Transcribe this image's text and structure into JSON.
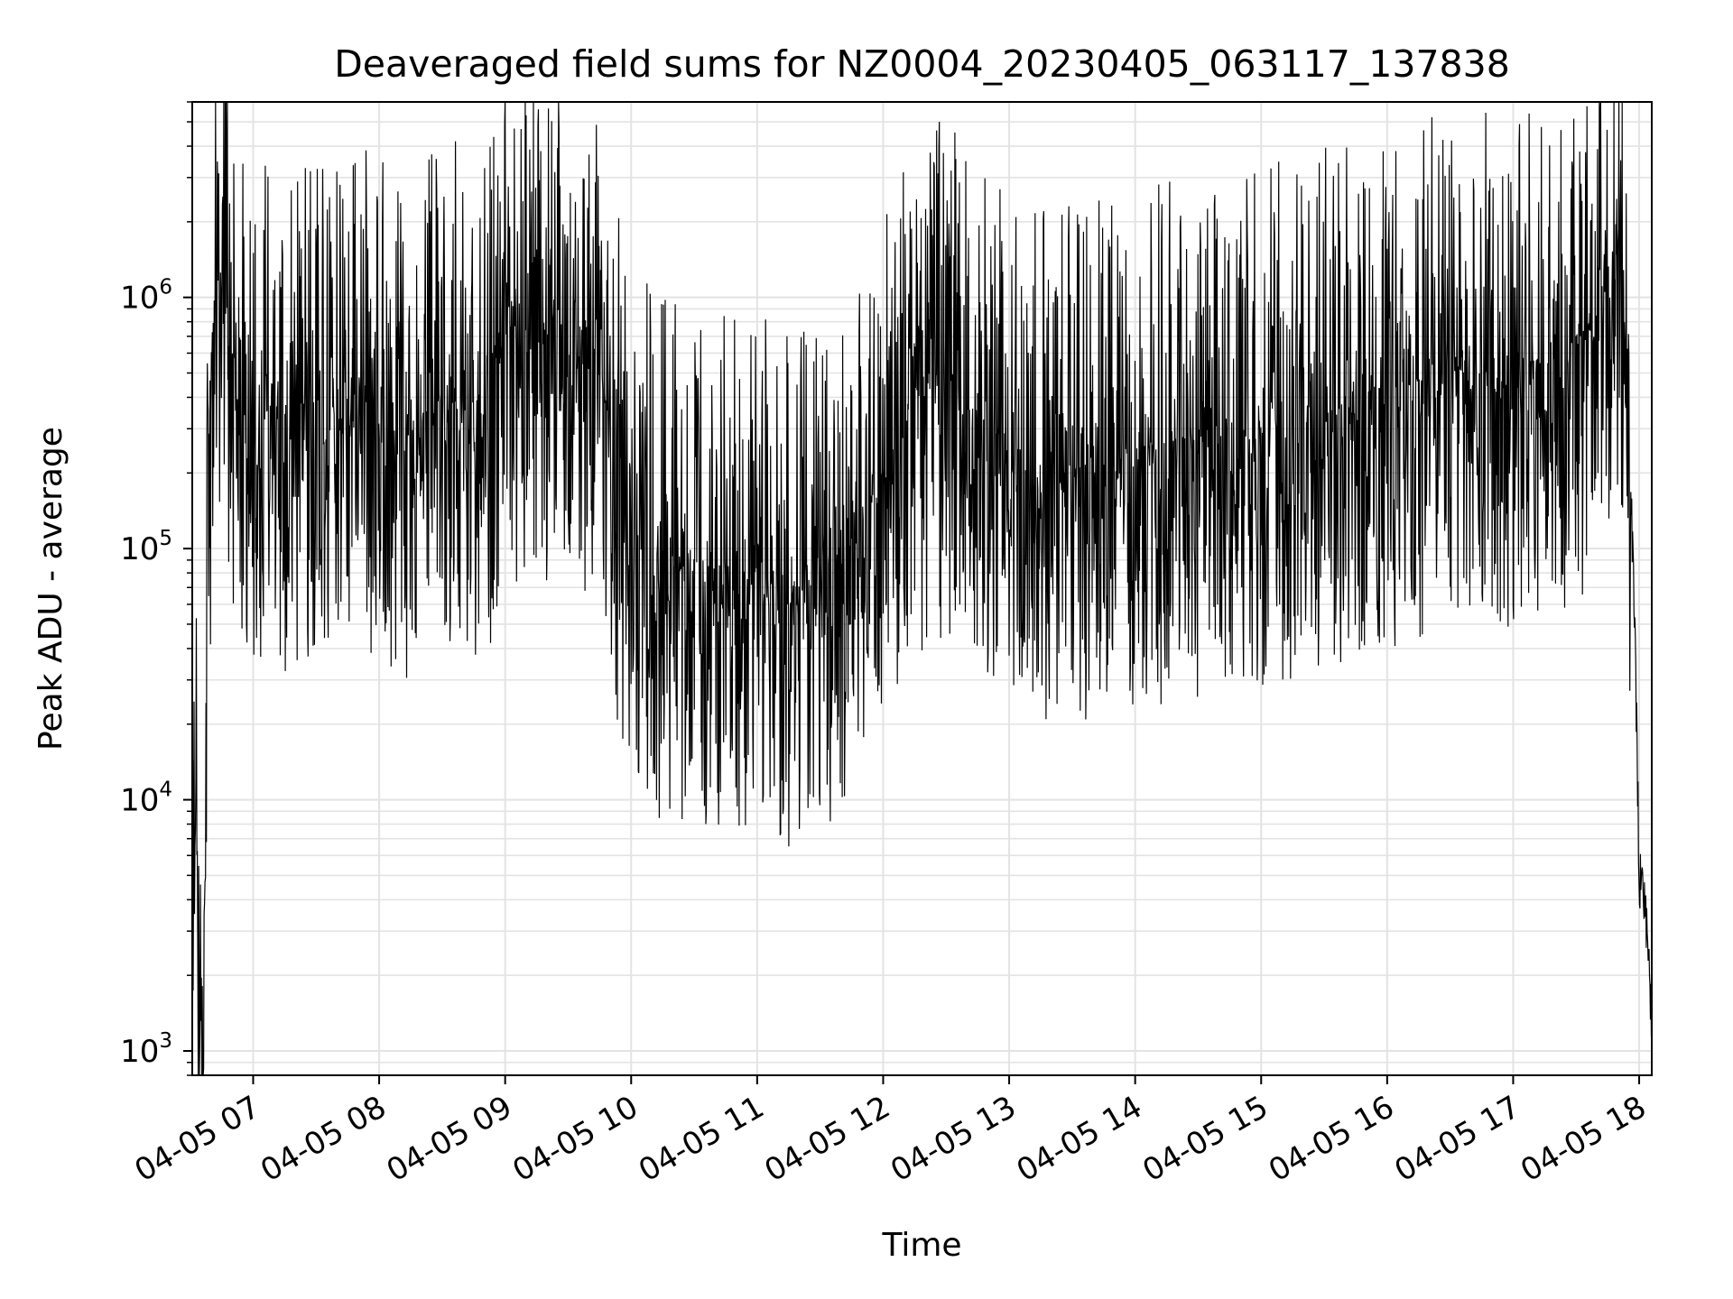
{
  "chart_data": {
    "type": "line",
    "title": "Deaveraged field sums for NZ0004_20230405_063117_137838",
    "xlabel": "Time",
    "ylabel": "Peak ADU - average",
    "y_scale": "log",
    "ylim": [
      800,
      6000000
    ],
    "xlim": [
      "2023-04-05 06:31",
      "2023-04-05 18:06"
    ],
    "grid": true,
    "line_color": "#000000",
    "grid_color": "#e3e3e3",
    "x_ticks": [
      {
        "t": "2023-04-05 07:00",
        "label": "04-05 07"
      },
      {
        "t": "2023-04-05 08:00",
        "label": "04-05 08"
      },
      {
        "t": "2023-04-05 09:00",
        "label": "04-05 09"
      },
      {
        "t": "2023-04-05 10:00",
        "label": "04-05 10"
      },
      {
        "t": "2023-04-05 11:00",
        "label": "04-05 11"
      },
      {
        "t": "2023-04-05 12:00",
        "label": "04-05 12"
      },
      {
        "t": "2023-04-05 13:00",
        "label": "04-05 13"
      },
      {
        "t": "2023-04-05 14:00",
        "label": "04-05 14"
      },
      {
        "t": "2023-04-05 15:00",
        "label": "04-05 15"
      },
      {
        "t": "2023-04-05 16:00",
        "label": "04-05 16"
      },
      {
        "t": "2023-04-05 17:00",
        "label": "04-05 17"
      },
      {
        "t": "2023-04-05 18:00",
        "label": "04-05 18"
      }
    ],
    "y_ticks": [
      {
        "value": 1000,
        "base": "10",
        "exp": "3"
      },
      {
        "value": 10000,
        "base": "10",
        "exp": "4"
      },
      {
        "value": 100000,
        "base": "10",
        "exp": "5"
      },
      {
        "value": 1000000,
        "base": "10",
        "exp": "6"
      }
    ],
    "series": [
      {
        "points": [
          [
            "2023-04-05 06:31",
            7000
          ],
          [
            "2023-04-05 06:33",
            6000
          ],
          [
            "2023-04-05 06:35",
            2800
          ],
          [
            "2023-04-05 06:36",
            1500
          ],
          [
            "2023-04-05 06:37",
            6000
          ],
          [
            "2023-04-05 06:38",
            100000
          ],
          [
            "2023-04-05 06:40",
            600000
          ],
          [
            "2023-04-05 06:42",
            1200000
          ],
          [
            "2023-04-05 06:44",
            1400000
          ],
          [
            "2023-04-05 06:47",
            1000000
          ],
          [
            "2023-04-05 06:50",
            600000
          ],
          [
            "2023-04-05 06:55",
            500000
          ],
          [
            "2023-04-05 07:00",
            400000
          ],
          [
            "2023-04-05 07:15",
            350000
          ],
          [
            "2023-04-05 07:30",
            400000
          ],
          [
            "2023-04-05 07:45",
            350000
          ],
          [
            "2023-04-05 08:00",
            400000
          ],
          [
            "2023-04-05 08:15",
            300000
          ],
          [
            "2023-04-05 08:30",
            400000
          ],
          [
            "2023-04-05 08:45",
            350000
          ],
          [
            "2023-04-05 08:55",
            500000
          ],
          [
            "2023-04-05 09:00",
            800000
          ],
          [
            "2023-04-05 09:15",
            700000
          ],
          [
            "2023-04-05 09:30",
            1000000
          ],
          [
            "2023-04-05 09:45",
            600000
          ],
          [
            "2023-04-05 09:50",
            300000
          ],
          [
            "2023-04-05 10:00",
            120000
          ],
          [
            "2023-04-05 10:15",
            90000
          ],
          [
            "2023-04-05 10:30",
            80000
          ],
          [
            "2023-04-05 10:45",
            90000
          ],
          [
            "2023-04-05 11:00",
            80000
          ],
          [
            "2023-04-05 11:15",
            70000
          ],
          [
            "2023-04-05 11:30",
            80000
          ],
          [
            "2023-04-05 11:45",
            110000
          ],
          [
            "2023-04-05 12:00",
            200000
          ],
          [
            "2023-04-05 12:15",
            400000
          ],
          [
            "2023-04-05 12:30",
            500000
          ],
          [
            "2023-04-05 12:45",
            350000
          ],
          [
            "2023-04-05 13:00",
            250000
          ],
          [
            "2023-04-05 13:15",
            200000
          ],
          [
            "2023-04-05 13:30",
            220000
          ],
          [
            "2023-04-05 13:45",
            250000
          ],
          [
            "2023-04-05 14:00",
            250000
          ],
          [
            "2023-04-05 14:30",
            280000
          ],
          [
            "2023-04-05 15:00",
            300000
          ],
          [
            "2023-04-05 15:30",
            350000
          ],
          [
            "2023-04-05 16:00",
            450000
          ],
          [
            "2023-04-05 16:30",
            500000
          ],
          [
            "2023-04-05 17:00",
            550000
          ],
          [
            "2023-04-05 17:30",
            600000
          ],
          [
            "2023-04-05 17:45",
            1500000
          ],
          [
            "2023-04-05 17:50",
            1000000
          ],
          [
            "2023-04-05 17:55",
            300000
          ],
          [
            "2023-04-05 17:58",
            50000
          ],
          [
            "2023-04-05 18:00",
            5000
          ],
          [
            "2023-04-05 18:03",
            4000
          ],
          [
            "2023-04-05 18:06",
            1200
          ]
        ]
      }
    ]
  }
}
